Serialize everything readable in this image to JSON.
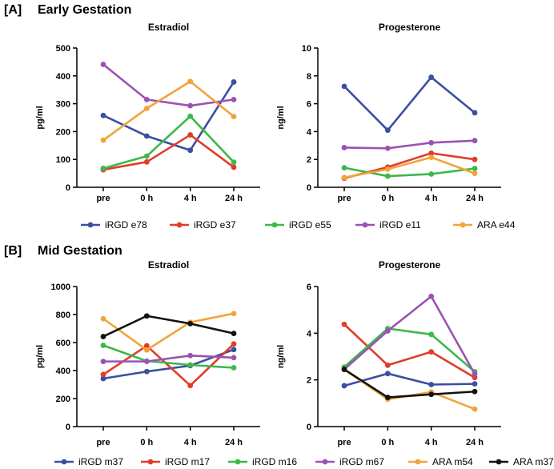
{
  "panels": [
    {
      "tag": "[A]",
      "title": "Early Gestation"
    },
    {
      "tag": "[B]",
      "title": "Mid Gestation"
    }
  ],
  "colors": {
    "blue": "#3a4fa0",
    "red": "#e03c2a",
    "green": "#3db84a",
    "purple": "#9b52b3",
    "orange": "#f2a33a",
    "black": "#111111"
  },
  "chart_data": [
    {
      "id": "A-estradiol",
      "type": "line",
      "title": "Estradiol",
      "xlabel": "",
      "ylabel": "pg/ml",
      "categories": [
        "pre",
        "0 h",
        "4 h",
        "24 h"
      ],
      "ylim": [
        0,
        500
      ],
      "yticks": [
        0,
        100,
        200,
        300,
        400,
        500
      ],
      "series": [
        {
          "name": "iRGD e78",
          "color": "#3a4fa0",
          "values": [
            258,
            184,
            133,
            378
          ]
        },
        {
          "name": "iRGD e37",
          "color": "#e03c2a",
          "values": [
            63,
            91,
            188,
            72
          ]
        },
        {
          "name": "iRGD e55",
          "color": "#3db84a",
          "values": [
            68,
            112,
            255,
            90
          ]
        },
        {
          "name": "iRGD e11",
          "color": "#9b52b3",
          "values": [
            441,
            315,
            293,
            315
          ]
        },
        {
          "name": "ARA e44",
          "color": "#f2a33a",
          "values": [
            169,
            283,
            380,
            254
          ]
        }
      ]
    },
    {
      "id": "A-progesterone",
      "type": "line",
      "title": "Progesterone",
      "xlabel": "",
      "ylabel": "ng/ml",
      "categories": [
        "pre",
        "0 h",
        "4 h",
        "24 h"
      ],
      "ylim": [
        0,
        10
      ],
      "yticks": [
        0,
        2,
        4,
        6,
        8,
        10
      ],
      "series": [
        {
          "name": "iRGD e78",
          "color": "#3a4fa0",
          "values": [
            7.25,
            4.1,
            7.9,
            5.35
          ]
        },
        {
          "name": "iRGD e37",
          "color": "#e03c2a",
          "values": [
            0.65,
            1.45,
            2.45,
            2.0
          ]
        },
        {
          "name": "iRGD e55",
          "color": "#3db84a",
          "values": [
            1.4,
            0.8,
            0.95,
            1.35
          ]
        },
        {
          "name": "iRGD e11",
          "color": "#9b52b3",
          "values": [
            2.85,
            2.8,
            3.2,
            3.35
          ]
        },
        {
          "name": "ARA e44",
          "color": "#f2a33a",
          "values": [
            0.7,
            1.3,
            2.15,
            1.0
          ]
        }
      ]
    },
    {
      "id": "B-estradiol",
      "type": "line",
      "title": "Estradiol",
      "xlabel": "",
      "ylabel": "pg/ml",
      "categories": [
        "pre",
        "0 h",
        "4 h",
        "24 h"
      ],
      "ylim": [
        0,
        1000
      ],
      "yticks": [
        0,
        200,
        400,
        600,
        800,
        1000
      ],
      "series": [
        {
          "name": "iRGD m37",
          "color": "#3a4fa0",
          "values": [
            343,
            393,
            435,
            550
          ]
        },
        {
          "name": "iRGD m17",
          "color": "#e03c2a",
          "values": [
            372,
            577,
            293,
            590
          ]
        },
        {
          "name": "iRGD m16",
          "color": "#3db84a",
          "values": [
            580,
            468,
            440,
            420
          ]
        },
        {
          "name": "iRGD m67",
          "color": "#9b52b3",
          "values": [
            465,
            465,
            507,
            492
          ]
        },
        {
          "name": "ARA m54",
          "color": "#f2a33a",
          "values": [
            770,
            547,
            745,
            807
          ]
        },
        {
          "name": "ARA m37",
          "color": "#111111",
          "values": [
            643,
            790,
            735,
            665
          ]
        }
      ]
    },
    {
      "id": "B-progesterone",
      "type": "line",
      "title": "Progesterone",
      "xlabel": "",
      "ylabel": "ng/ml",
      "categories": [
        "pre",
        "0 h",
        "4 h",
        "24 h"
      ],
      "ylim": [
        0,
        6
      ],
      "yticks": [
        0,
        2,
        4,
        6
      ],
      "series": [
        {
          "name": "iRGD m37",
          "color": "#3a4fa0",
          "values": [
            1.75,
            2.27,
            1.8,
            1.83
          ]
        },
        {
          "name": "iRGD m17",
          "color": "#e03c2a",
          "values": [
            4.38,
            2.63,
            3.2,
            2.1
          ]
        },
        {
          "name": "iRGD m16",
          "color": "#3db84a",
          "values": [
            2.55,
            4.2,
            3.95,
            2.35
          ]
        },
        {
          "name": "iRGD m67",
          "color": "#9b52b3",
          "values": [
            2.45,
            4.1,
            5.58,
            2.25
          ]
        },
        {
          "name": "ARA m54",
          "color": "#f2a33a",
          "values": [
            2.45,
            1.17,
            1.48,
            0.75
          ]
        },
        {
          "name": "ARA m37",
          "color": "#111111",
          "values": [
            2.45,
            1.25,
            1.38,
            1.5
          ]
        }
      ]
    }
  ],
  "legends": [
    [
      {
        "name": "iRGD e78",
        "color": "#3a4fa0"
      },
      {
        "name": "iRGD e37",
        "color": "#e03c2a"
      },
      {
        "name": "iRGD e55",
        "color": "#3db84a"
      },
      {
        "name": "iRGD e11",
        "color": "#9b52b3"
      },
      {
        "name": "ARA e44",
        "color": "#f2a33a"
      }
    ],
    [
      {
        "name": "iRGD m37",
        "color": "#3a4fa0"
      },
      {
        "name": "iRGD m17",
        "color": "#e03c2a"
      },
      {
        "name": "iRGD m16",
        "color": "#3db84a"
      },
      {
        "name": "iRGD m67",
        "color": "#9b52b3"
      },
      {
        "name": "ARA m54",
        "color": "#f2a33a"
      },
      {
        "name": "ARA m37",
        "color": "#111111"
      }
    ]
  ]
}
